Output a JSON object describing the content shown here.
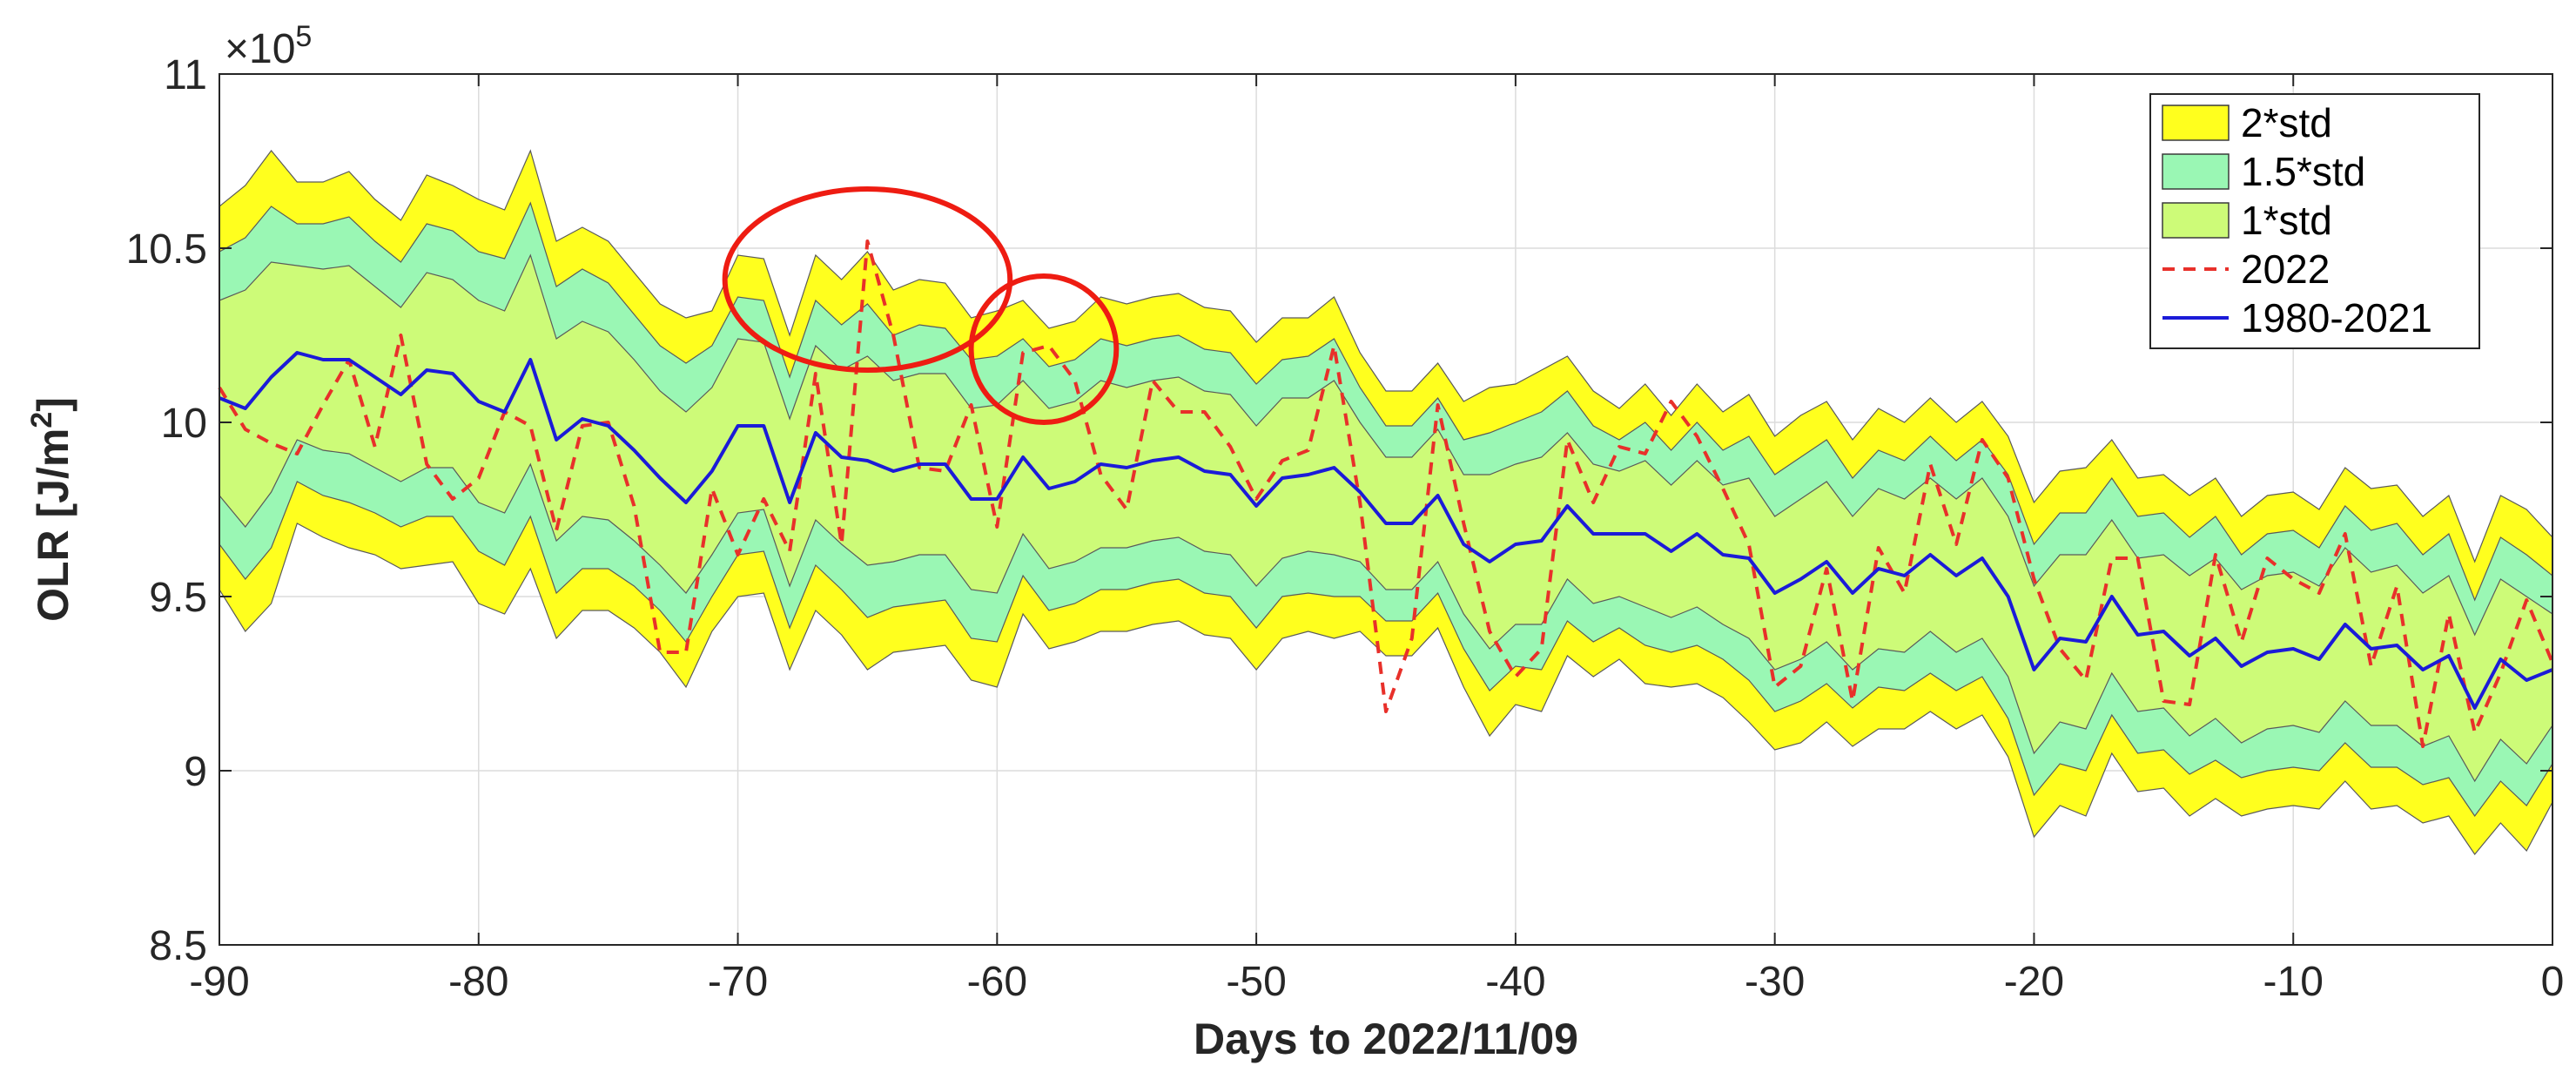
{
  "chart_data": {
    "type": "area",
    "xlabel": "Days to 2022/11/09",
    "ylabel_main": "OLR [J/m",
    "ylabel_sup": "2",
    "ylabel_end": "]",
    "y_exponent_prefix": "×10",
    "y_exponent_power": "5",
    "xlim": [
      -90,
      0
    ],
    "ylim": [
      8.5,
      11
    ],
    "x_ticks": [
      -90,
      -80,
      -70,
      -60,
      -50,
      -40,
      -30,
      -20,
      -10,
      0
    ],
    "x_tick_labels": [
      "-90",
      "-80",
      "-70",
      "-60",
      "-50",
      "-40",
      "-30",
      "-20",
      "-10",
      "0"
    ],
    "y_ticks": [
      8.5,
      9,
      9.5,
      10,
      10.5,
      11
    ],
    "y_tick_labels": [
      "8.5",
      "9",
      "9.5",
      "10",
      "10.5",
      "11"
    ],
    "grid": true,
    "legend_position": "top-right",
    "colors": {
      "band2": "#ffff1e",
      "band15": "#9af7b4",
      "band1": "#cdfb78",
      "line2022": "#e8302a",
      "line_mean": "#1b1bd8",
      "annotation": "#ee1c12"
    },
    "x": [
      -90,
      -89,
      -88,
      -87,
      -86,
      -85,
      -84,
      -83,
      -82,
      -81,
      -80,
      -79,
      -78,
      -77,
      -76,
      -75,
      -74,
      -73,
      -72,
      -71,
      -70,
      -69,
      -68,
      -67,
      -66,
      -65,
      -64,
      -63,
      -62,
      -61,
      -60,
      -59,
      -58,
      -57,
      -56,
      -55,
      -54,
      -53,
      -52,
      -51,
      -50,
      -49,
      -48,
      -47,
      -46,
      -45,
      -44,
      -43,
      -42,
      -41,
      -40,
      -39,
      -38,
      -37,
      -36,
      -35,
      -34,
      -33,
      -32,
      -31,
      -30,
      -29,
      -28,
      -27,
      -26,
      -25,
      -24,
      -23,
      -22,
      -21,
      -20,
      -19,
      -18,
      -17,
      -16,
      -15,
      -14,
      -13,
      -12,
      -11,
      -10,
      -9,
      -8,
      -7,
      -6,
      -5,
      -4,
      -3,
      -2,
      -1,
      0
    ],
    "series": [
      {
        "name": "1980-2021",
        "values": [
          10.07,
          10.04,
          10.13,
          10.2,
          10.18,
          10.18,
          10.13,
          10.08,
          10.15,
          10.14,
          10.06,
          10.03,
          10.18,
          9.95,
          10.01,
          9.99,
          9.92,
          9.84,
          9.77,
          9.86,
          9.99,
          9.99,
          9.77,
          9.97,
          9.9,
          9.89,
          9.86,
          9.88,
          9.88,
          9.78,
          9.78,
          9.9,
          9.81,
          9.83,
          9.88,
          9.87,
          9.89,
          9.9,
          9.86,
          9.85,
          9.76,
          9.84,
          9.85,
          9.87,
          9.8,
          9.71,
          9.71,
          9.79,
          9.65,
          9.6,
          9.65,
          9.66,
          9.76,
          9.68,
          9.68,
          9.68,
          9.63,
          9.68,
          9.62,
          9.61,
          9.51,
          9.55,
          9.6,
          9.51,
          9.58,
          9.56,
          9.62,
          9.56,
          9.61,
          9.5,
          9.29,
          9.38,
          9.37,
          9.5,
          9.39,
          9.4,
          9.33,
          9.38,
          9.3,
          9.34,
          9.35,
          9.32,
          9.42,
          9.35,
          9.36,
          9.29,
          9.33,
          9.18,
          9.32,
          9.26,
          9.29
        ]
      },
      {
        "name": "2022",
        "values": [
          10.1,
          9.98,
          9.94,
          9.91,
          10.05,
          10.18,
          9.93,
          10.25,
          9.88,
          9.78,
          9.84,
          10.03,
          9.99,
          9.69,
          9.99,
          10.0,
          9.76,
          9.34,
          9.34,
          9.81,
          9.62,
          9.78,
          9.63,
          10.14,
          9.65,
          10.52,
          10.25,
          9.87,
          9.86,
          10.05,
          9.7,
          10.2,
          10.22,
          10.12,
          9.85,
          9.75,
          10.12,
          10.03,
          10.03,
          9.93,
          9.78,
          9.89,
          9.92,
          10.22,
          9.77,
          9.17,
          9.38,
          10.05,
          9.71,
          9.4,
          9.27,
          9.35,
          9.95,
          9.77,
          9.93,
          9.91,
          10.06,
          9.96,
          9.81,
          9.65,
          9.24,
          9.3,
          9.58,
          9.2,
          9.64,
          9.51,
          9.88,
          9.65,
          9.95,
          9.84,
          9.55,
          9.35,
          9.26,
          9.61,
          9.61,
          9.2,
          9.19,
          9.62,
          9.37,
          9.61,
          9.55,
          9.51,
          9.68,
          9.3,
          9.53,
          9.07,
          9.45,
          9.11,
          9.28,
          9.49,
          9.31
        ]
      }
    ],
    "bands": [
      {
        "name": "2*std",
        "upper": [
          10.62,
          10.68,
          10.78,
          10.69,
          10.69,
          10.72,
          10.64,
          10.58,
          10.71,
          10.68,
          10.64,
          10.61,
          10.78,
          10.52,
          10.56,
          10.52,
          10.43,
          10.34,
          10.3,
          10.32,
          10.48,
          10.47,
          10.25,
          10.48,
          10.41,
          10.49,
          10.38,
          10.41,
          10.4,
          10.3,
          10.32,
          10.35,
          10.27,
          10.29,
          10.36,
          10.34,
          10.36,
          10.37,
          10.33,
          10.32,
          10.23,
          10.3,
          10.3,
          10.36,
          10.2,
          10.09,
          10.09,
          10.17,
          10.06,
          10.1,
          10.11,
          10.15,
          10.19,
          10.09,
          10.04,
          10.11,
          10.02,
          10.11,
          10.03,
          10.08,
          9.96,
          10.02,
          10.06,
          9.95,
          10.04,
          10.0,
          10.07,
          10.0,
          10.06,
          9.96,
          9.77,
          9.86,
          9.87,
          9.95,
          9.84,
          9.85,
          9.79,
          9.84,
          9.73,
          9.79,
          9.8,
          9.75,
          9.87,
          9.81,
          9.82,
          9.73,
          9.79,
          9.6,
          9.79,
          9.75,
          9.67
        ]
      },
      {
        "name": "1.5*std",
        "upper": [
          10.49,
          10.53,
          10.62,
          10.57,
          10.57,
          10.59,
          10.52,
          10.46,
          10.57,
          10.55,
          10.49,
          10.47,
          10.63,
          10.39,
          10.44,
          10.4,
          10.31,
          10.22,
          10.17,
          10.22,
          10.36,
          10.35,
          10.13,
          10.35,
          10.28,
          10.34,
          10.25,
          10.28,
          10.27,
          10.18,
          10.19,
          10.24,
          10.16,
          10.18,
          10.24,
          10.22,
          10.24,
          10.25,
          10.21,
          10.2,
          10.11,
          10.18,
          10.19,
          10.24,
          10.1,
          9.99,
          9.99,
          10.07,
          9.95,
          9.97,
          10.0,
          10.03,
          10.09,
          9.99,
          9.95,
          10.0,
          9.92,
          10.0,
          9.92,
          9.96,
          9.85,
          9.9,
          9.95,
          9.84,
          9.92,
          9.89,
          9.96,
          9.89,
          9.95,
          9.85,
          9.65,
          9.74,
          9.74,
          9.84,
          9.73,
          9.74,
          9.67,
          9.73,
          9.62,
          9.68,
          9.69,
          9.64,
          9.76,
          9.69,
          9.71,
          9.62,
          9.68,
          9.49,
          9.67,
          9.62,
          9.56
        ]
      },
      {
        "name": "1*std",
        "upper": [
          10.35,
          10.38,
          10.46,
          10.45,
          10.44,
          10.45,
          10.39,
          10.33,
          10.43,
          10.41,
          10.35,
          10.32,
          10.48,
          10.24,
          10.29,
          10.26,
          10.18,
          10.09,
          10.03,
          10.1,
          10.24,
          10.23,
          10.01,
          10.22,
          10.15,
          10.19,
          10.12,
          10.14,
          10.14,
          10.04,
          10.05,
          10.12,
          10.04,
          10.06,
          10.12,
          10.1,
          10.12,
          10.13,
          10.09,
          10.08,
          9.99,
          10.07,
          10.07,
          10.12,
          10.0,
          9.9,
          9.9,
          9.98,
          9.85,
          9.85,
          9.88,
          9.9,
          9.97,
          9.88,
          9.86,
          9.89,
          9.82,
          9.89,
          9.82,
          9.84,
          9.73,
          9.78,
          9.83,
          9.73,
          9.81,
          9.78,
          9.84,
          9.78,
          9.84,
          9.73,
          9.53,
          9.62,
          9.62,
          9.72,
          9.61,
          9.62,
          9.56,
          9.61,
          9.52,
          9.56,
          9.57,
          9.53,
          9.64,
          9.57,
          9.59,
          9.51,
          9.56,
          9.39,
          9.55,
          9.5,
          9.45
        ]
      }
    ],
    "legend": [
      {
        "label": "2*std",
        "kind": "patch"
      },
      {
        "label": "1.5*std",
        "kind": "patch"
      },
      {
        "label": "1*std",
        "kind": "patch"
      },
      {
        "label": "2022",
        "kind": "dashed-line"
      },
      {
        "label": "1980-2021",
        "kind": "line"
      }
    ],
    "annotations": [
      {
        "type": "circle",
        "x": -65,
        "y": 10.41,
        "rx_days": 5.5,
        "ry_value": 0.26
      },
      {
        "type": "circle",
        "x": -58.2,
        "y": 10.21,
        "rx_days": 2.8,
        "ry_value": 0.21
      }
    ]
  }
}
